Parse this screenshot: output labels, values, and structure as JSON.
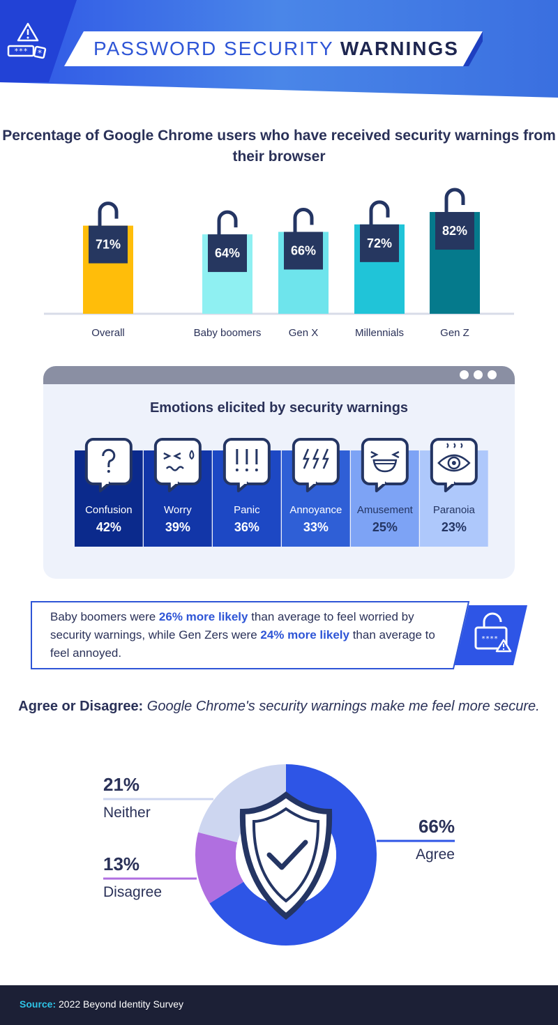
{
  "header": {
    "title_light": "PASSWORD SECURITY",
    "title_bold": "WARNINGS",
    "colors": {
      "blue": "#2e55d6",
      "dark": "#1e2650"
    }
  },
  "chart_data": [
    {
      "type": "bar",
      "title": "Percentage of Google Chrome users who have received security warnings from their browser",
      "categories": [
        "Overall",
        "Baby boomers",
        "Gen X",
        "Millennials",
        "Gen Z"
      ],
      "values": [
        71,
        64,
        66,
        72,
        82
      ],
      "value_labels": [
        "71%",
        "64%",
        "66%",
        "72%",
        "82%"
      ],
      "unit": "%",
      "colors": [
        "#ffbd0a",
        "#8ff0f2",
        "#6ee4ec",
        "#20c4d8",
        "#057a8c"
      ]
    },
    {
      "type": "bar",
      "title": "Emotions elicited by security warnings",
      "categories": [
        "Confusion",
        "Worry",
        "Panic",
        "Annoyance",
        "Amusement",
        "Paranoia"
      ],
      "values": [
        42,
        39,
        36,
        33,
        25,
        23
      ],
      "value_labels": [
        "42%",
        "39%",
        "36%",
        "33%",
        "25%",
        "23%"
      ],
      "icons": [
        "question-mark-icon",
        "worried-face-icon",
        "exclamation-marks-icon",
        "lightning-bolts-icon",
        "laughing-face-icon",
        "eye-icon"
      ],
      "colors": [
        "#0b2a8c",
        "#1236a8",
        "#1d48c4",
        "#2f5fd6",
        "#7da3f5",
        "#aec8fb"
      ]
    },
    {
      "type": "pie",
      "title": "Agree or Disagree:",
      "title_italic": "Google Chrome's security warnings make me feel more secure.",
      "categories": [
        "Agree",
        "Disagree",
        "Neither"
      ],
      "values": [
        66,
        13,
        21
      ],
      "value_labels": [
        "66%",
        "13%",
        "21%"
      ],
      "colors": [
        "#2e55e6",
        "#b06fe0",
        "#cdd6f0"
      ],
      "center_icon": "shield-check-icon"
    }
  ],
  "callout": {
    "part1": "Baby boomers were ",
    "highlight1": "26% more likely",
    "part2": " than average to feel worried by security warnings, while Gen Zers were ",
    "highlight2": "24% more likely",
    "part3": " than average to feel annoyed."
  },
  "footer": {
    "source_label": "Source:",
    "source_text": "2022 Beyond Identity Survey"
  }
}
